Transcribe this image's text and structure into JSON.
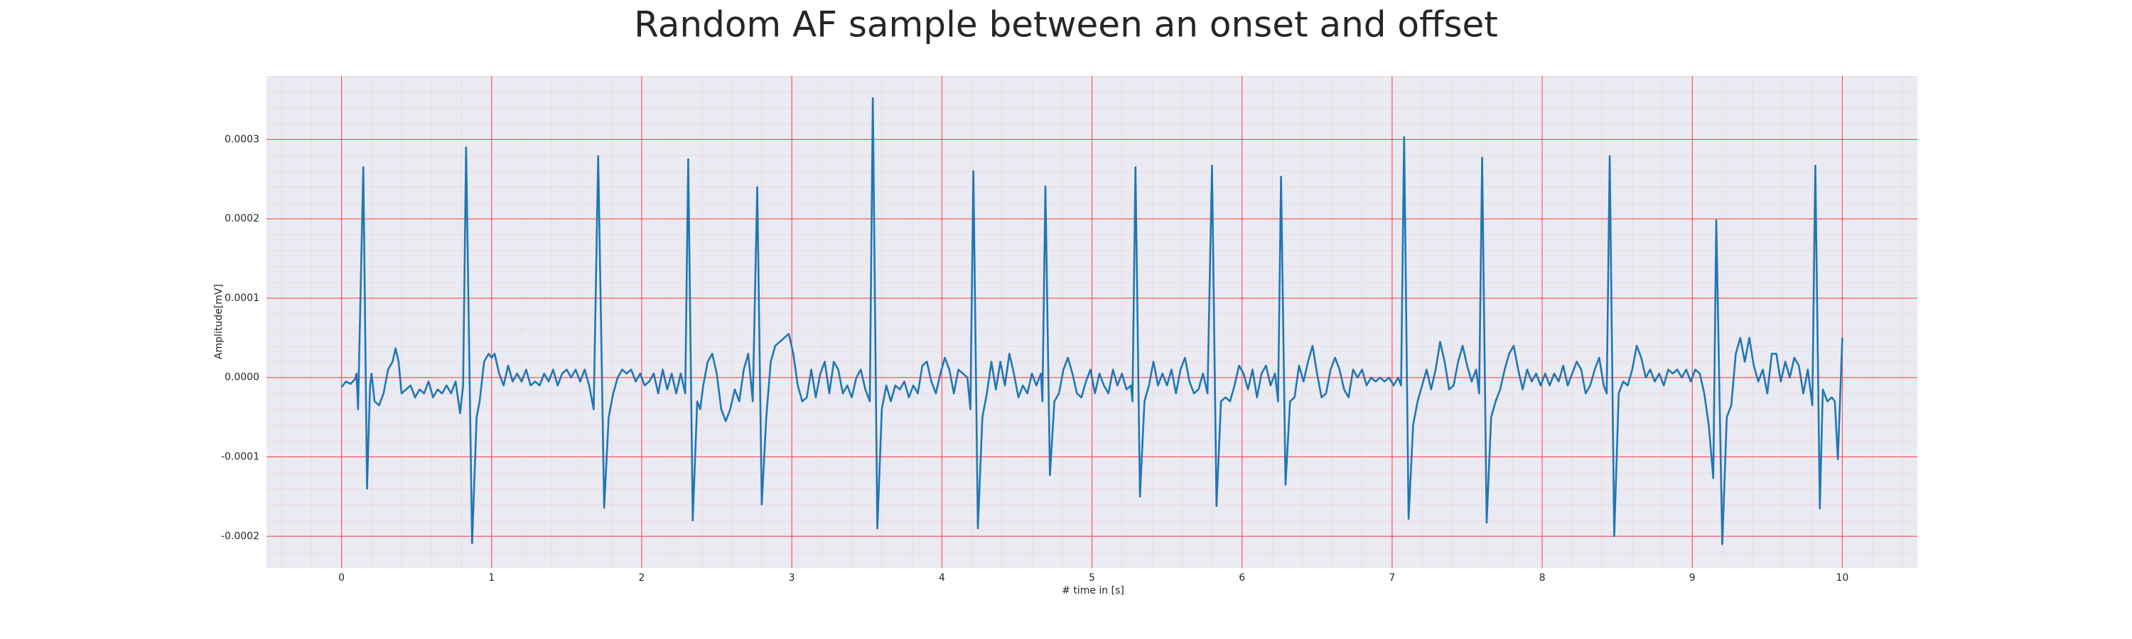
{
  "chart_data": {
    "type": "line",
    "title": "Random AF sample between an onset and offset",
    "xlabel": "# time in [s]",
    "ylabel": "Amplitude[mV]",
    "xlim": [
      -0.5,
      10.5
    ],
    "ylim": [
      -0.00024,
      0.00038
    ],
    "xticks": [
      0,
      1,
      2,
      3,
      4,
      5,
      6,
      7,
      8,
      9,
      10
    ],
    "yticks": [
      -0.0002,
      -0.0001,
      {
        "value": 0,
        "label": "0.0000"
      },
      0.0001,
      0.0002,
      0.0003
    ],
    "grid": true,
    "minor_grid": true,
    "background": "#eaeaf2",
    "grid_color": "#ff3b3b",
    "minor_grid_color": "#f7c6cc",
    "x": [
      0,
      0.03,
      0.06,
      0.09,
      0.1,
      0.11,
      0.145,
      0.17,
      0.19,
      0.2,
      0.22,
      0.25,
      0.28,
      0.31,
      0.34,
      0.36,
      0.38,
      0.4,
      0.43,
      0.46,
      0.49,
      0.52,
      0.55,
      0.58,
      0.61,
      0.64,
      0.67,
      0.7,
      0.73,
      0.76,
      0.79,
      0.81,
      0.83,
      0.87,
      0.9,
      0.92,
      0.95,
      0.98,
      1.0,
      1.02,
      1.05,
      1.08,
      1.11,
      1.14,
      1.17,
      1.2,
      1.23,
      1.26,
      1.29,
      1.32,
      1.35,
      1.38,
      1.41,
      1.44,
      1.47,
      1.5,
      1.53,
      1.56,
      1.59,
      1.62,
      1.65,
      1.68,
      1.71,
      1.75,
      1.78,
      1.81,
      1.84,
      1.87,
      1.9,
      1.93,
      1.96,
      1.99,
      2.02,
      2.05,
      2.08,
      2.11,
      2.14,
      2.17,
      2.2,
      2.23,
      2.26,
      2.29,
      2.31,
      2.34,
      2.37,
      2.39,
      2.41,
      2.44,
      2.47,
      2.5,
      2.53,
      2.56,
      2.59,
      2.62,
      2.65,
      2.68,
      2.71,
      2.74,
      2.77,
      2.8,
      2.83,
      2.86,
      2.89,
      2.92,
      2.95,
      2.98,
      3.01,
      3.04,
      3.07,
      3.1,
      3.13,
      3.16,
      3.19,
      3.22,
      3.25,
      3.28,
      3.31,
      3.34,
      3.37,
      3.4,
      3.43,
      3.46,
      3.49,
      3.52,
      3.54,
      3.57,
      3.6,
      3.63,
      3.66,
      3.69,
      3.72,
      3.75,
      3.78,
      3.81,
      3.84,
      3.87,
      3.9,
      3.93,
      3.96,
      3.99,
      4.02,
      4.05,
      4.08,
      4.11,
      4.14,
      4.17,
      4.19,
      4.21,
      4.24,
      4.27,
      4.3,
      4.33,
      4.36,
      4.39,
      4.42,
      4.45,
      4.48,
      4.51,
      4.54,
      4.57,
      4.6,
      4.63,
      4.66,
      4.67,
      4.69,
      4.72,
      4.75,
      4.78,
      4.81,
      4.84,
      4.87,
      4.9,
      4.93,
      4.96,
      4.99,
      5.02,
      5.05,
      5.08,
      5.11,
      5.14,
      5.17,
      5.2,
      5.23,
      5.26,
      5.27,
      5.29,
      5.32,
      5.35,
      5.38,
      5.41,
      5.44,
      5.47,
      5.5,
      5.53,
      5.56,
      5.59,
      5.62,
      5.65,
      5.68,
      5.71,
      5.74,
      5.77,
      5.8,
      5.83,
      5.86,
      5.89,
      5.92,
      5.95,
      5.98,
      6.01,
      6.04,
      6.07,
      6.1,
      6.13,
      6.16,
      6.19,
      6.22,
      6.24,
      6.26,
      6.29,
      6.32,
      6.35,
      6.38,
      6.41,
      6.44,
      6.47,
      6.5,
      6.53,
      6.56,
      6.59,
      6.62,
      6.65,
      6.68,
      6.71,
      6.74,
      6.77,
      6.8,
      6.83,
      6.86,
      6.89,
      6.92,
      6.95,
      6.98,
      7.01,
      7.04,
      7.06,
      7.08,
      7.11,
      7.14,
      7.17,
      7.2,
      7.23,
      7.26,
      7.29,
      7.32,
      7.35,
      7.38,
      7.41,
      7.44,
      7.47,
      7.5,
      7.53,
      7.56,
      7.58,
      7.6,
      7.63,
      7.66,
      7.69,
      7.72,
      7.75,
      7.78,
      7.81,
      7.84,
      7.87,
      7.9,
      7.93,
      7.96,
      7.99,
      8.02,
      8.05,
      8.08,
      8.11,
      8.14,
      8.17,
      8.2,
      8.23,
      8.26,
      8.29,
      8.32,
      8.35,
      8.38,
      8.41,
      8.43,
      8.45,
      8.48,
      8.51,
      8.54,
      8.57,
      8.6,
      8.63,
      8.66,
      8.69,
      8.72,
      8.75,
      8.78,
      8.81,
      8.84,
      8.87,
      8.9,
      8.93,
      8.96,
      8.99,
      9.02,
      9.05,
      9.08,
      9.11,
      9.14,
      9.16,
      9.2,
      9.23,
      9.26,
      9.29,
      9.32,
      9.35,
      9.38,
      9.41,
      9.44,
      9.47,
      9.5,
      9.53,
      9.56,
      9.59,
      9.62,
      9.65,
      9.68,
      9.71,
      9.74,
      9.77,
      9.8,
      9.82,
      9.85,
      9.87,
      9.9,
      9.93,
      9.95,
      9.97,
      10.0
    ],
    "series": [
      {
        "color": "#1f77b4",
        "values": [
          -1.2e-05,
          -5e-06,
          -8e-06,
          -2e-06,
          5e-06,
          -4e-05,
          0.000265,
          -0.00014,
          -1e-05,
          5e-06,
          -3e-05,
          -3.5e-05,
          -2e-05,
          1e-05,
          2e-05,
          3.7e-05,
          2e-05,
          -2e-05,
          -1.5e-05,
          -1e-05,
          -2.5e-05,
          -1.5e-05,
          -2e-05,
          -5e-06,
          -2.5e-05,
          -1.5e-05,
          -2e-05,
          -1e-05,
          -2e-05,
          -5e-06,
          -4.5e-05,
          -1e-05,
          0.00029,
          -0.000209,
          -5e-05,
          -3e-05,
          2e-05,
          3e-05,
          2.5e-05,
          3e-05,
          5e-06,
          -1e-05,
          1.5e-05,
          -5e-06,
          5e-06,
          -5e-06,
          1e-05,
          -1e-05,
          -5e-06,
          -1e-05,
          5e-06,
          -5e-06,
          1e-05,
          -1e-05,
          5e-06,
          1e-05,
          0.0,
          1e-05,
          -5e-06,
          1e-05,
          -1e-05,
          -4e-05,
          0.000279,
          -0.000164,
          -5e-05,
          -2e-05,
          0.0,
          1e-05,
          5e-06,
          1e-05,
          -5e-06,
          5e-06,
          -1e-05,
          -5e-06,
          5e-06,
          -2e-05,
          1e-05,
          -1.5e-05,
          5e-06,
          -2e-05,
          5e-06,
          -2e-05,
          0.000275,
          -0.00018,
          -3e-05,
          -4e-05,
          -1e-05,
          2e-05,
          3e-05,
          5e-06,
          -4e-05,
          -5.5e-05,
          -4e-05,
          -1.5e-05,
          -3e-05,
          1e-05,
          3e-05,
          -3e-05,
          0.00024,
          -0.00016,
          -5e-05,
          2e-05,
          4e-05,
          4.5e-05,
          5e-05,
          5.5e-05,
          3e-05,
          -1e-05,
          -3e-05,
          -2.5e-05,
          1e-05,
          -2.5e-05,
          5e-06,
          2e-05,
          -2e-05,
          2e-05,
          1e-05,
          -2e-05,
          -1e-05,
          -2.5e-05,
          0.0,
          1e-05,
          -1.5e-05,
          -3e-05,
          0.000352,
          -0.00019,
          -4e-05,
          -1e-05,
          -3e-05,
          -1e-05,
          -1.5e-05,
          -5e-06,
          -2.5e-05,
          -1e-05,
          -2e-05,
          1.5e-05,
          2e-05,
          -5e-06,
          -2e-05,
          5e-06,
          2.5e-05,
          1e-05,
          -2e-05,
          1e-05,
          5e-06,
          0.0,
          -4e-05,
          0.00026,
          -0.00019,
          -5e-05,
          -2e-05,
          2e-05,
          -1.5e-05,
          2e-05,
          -1e-05,
          3e-05,
          5e-06,
          -2.5e-05,
          -1e-05,
          -2e-05,
          5e-06,
          -1e-05,
          5e-06,
          -3e-05,
          0.000241,
          -0.000123,
          -3e-05,
          -2e-05,
          1e-05,
          2.5e-05,
          5e-06,
          -2e-05,
          -2.5e-05,
          -5e-06,
          1e-05,
          -2e-05,
          5e-06,
          -1e-05,
          -2e-05,
          1e-05,
          -1e-05,
          5e-06,
          -1.5e-05,
          -1e-05,
          -3e-05,
          0.000265,
          -0.00015,
          -3e-05,
          -1e-05,
          2e-05,
          -1e-05,
          5e-06,
          -1e-05,
          1e-05,
          -2e-05,
          1e-05,
          2.5e-05,
          -5e-06,
          -2e-05,
          -1.5e-05,
          5e-06,
          -2e-05,
          0.000267,
          -0.000162,
          -3e-05,
          -2.5e-05,
          -3e-05,
          -1e-05,
          1.5e-05,
          5e-06,
          -1.5e-05,
          1e-05,
          -2.5e-05,
          5e-06,
          1.5e-05,
          -1e-05,
          5e-06,
          -3e-05,
          0.000253,
          -0.000135,
          -3e-05,
          -2.5e-05,
          1.5e-05,
          -5e-06,
          2e-05,
          4e-05,
          5e-06,
          -2.5e-05,
          -2e-05,
          1e-05,
          2.5e-05,
          1e-05,
          -1.5e-05,
          -2.5e-05,
          1e-05,
          0.0,
          1e-05,
          -1e-05,
          0.0,
          -5e-06,
          0.0,
          -5e-06,
          0.0,
          -1e-05,
          0.0,
          -1e-05,
          0.000303,
          -0.000178,
          -6e-05,
          -3e-05,
          -1e-05,
          1e-05,
          -1.5e-05,
          1e-05,
          4.5e-05,
          2e-05,
          -1.5e-05,
          -1e-05,
          2e-05,
          4e-05,
          1.5e-05,
          -5e-06,
          1e-05,
          -2e-05,
          0.000277,
          -0.000183,
          -5e-05,
          -3e-05,
          -1.5e-05,
          1e-05,
          3e-05,
          4e-05,
          1e-05,
          -1.5e-05,
          1e-05,
          -5e-06,
          5e-06,
          -1e-05,
          5e-06,
          -1e-05,
          5e-06,
          -5e-06,
          1.5e-05,
          -1e-05,
          5e-06,
          2e-05,
          1e-05,
          -2e-05,
          -1e-05,
          1e-05,
          2.5e-05,
          -1e-05,
          -2e-05,
          0.000279,
          -0.0002,
          -2e-05,
          -5e-06,
          -1e-05,
          1e-05,
          4e-05,
          2.5e-05,
          0.0,
          1e-05,
          -5e-06,
          5e-06,
          -1e-05,
          1e-05,
          5e-06,
          1e-05,
          0.0,
          1e-05,
          -5e-06,
          1e-05,
          5e-06,
          -2e-05,
          -6e-05,
          -0.000127,
          0.000198,
          -0.00021,
          -5e-05,
          -3.5e-05,
          3e-05,
          5e-05,
          2e-05,
          5e-05,
          1.5e-05,
          -5e-06,
          1e-05,
          -2e-05,
          3e-05,
          3e-05,
          -5e-06,
          2e-05,
          0.0,
          2.5e-05,
          1.5e-05,
          -2e-05,
          1e-05,
          -3.5e-05,
          0.000267,
          -0.000165,
          -1.5e-05,
          -3e-05,
          -2.5e-05,
          -3e-05,
          -0.000103,
          5e-05
        ]
      }
    ]
  }
}
